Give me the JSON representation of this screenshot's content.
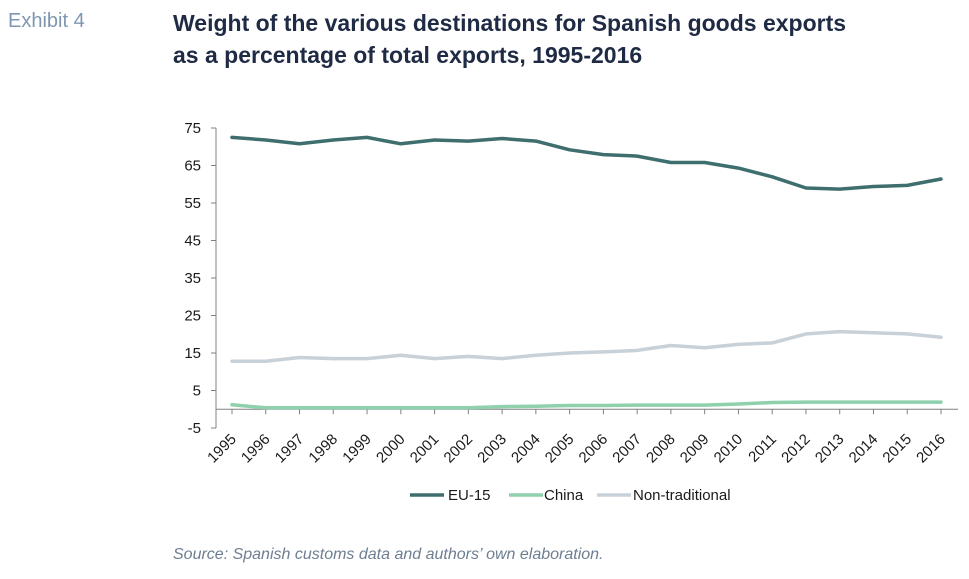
{
  "header": {
    "exhibit": "Exhibit 4",
    "title_line1": "Weight of the various destinations for Spanish goods exports",
    "title_line2": "as a percentage of total exports, 1995-2016"
  },
  "source": "Source: Spanish customs data and authors’ own elaboration.",
  "chart_data": {
    "type": "line",
    "title": "",
    "xlabel": "",
    "ylabel": "",
    "ylim": [
      -5,
      75
    ],
    "yticks": [
      75,
      65,
      55,
      45,
      35,
      25,
      15,
      5,
      -5
    ],
    "grid": false,
    "legend_position": "bottom",
    "x": [
      "1995",
      "1996",
      "1997",
      "1998",
      "1999",
      "2000",
      "2001",
      "2002",
      "2003",
      "2004",
      "2005",
      "2006",
      "2007",
      "2008",
      "2009",
      "2010",
      "2011",
      "2012",
      "2013",
      "2014",
      "2015",
      "2016"
    ],
    "series": [
      {
        "name": "EU-15",
        "color": "#3e6e6e",
        "values": [
          72.5,
          71.8,
          70.8,
          71.8,
          72.5,
          70.8,
          71.8,
          71.5,
          72.2,
          71.5,
          69.2,
          67.9,
          67.5,
          65.8,
          65.8,
          64.3,
          62.0,
          59.0,
          58.7,
          59.4,
          59.7,
          61.4
        ]
      },
      {
        "name": "China",
        "color": "#8fd0ad",
        "values": [
          1.2,
          0.4,
          0.4,
          0.4,
          0.4,
          0.4,
          0.4,
          0.4,
          0.7,
          0.8,
          1.0,
          1.0,
          1.1,
          1.1,
          1.1,
          1.4,
          1.8,
          1.9,
          1.9,
          1.9,
          1.9,
          1.9
        ]
      },
      {
        "name": "Non-traditional",
        "color": "#c8d0d8",
        "values": [
          12.8,
          12.8,
          13.8,
          13.5,
          13.5,
          14.4,
          13.5,
          14.1,
          13.5,
          14.4,
          15.0,
          15.3,
          15.7,
          17.0,
          16.4,
          17.3,
          17.7,
          20.1,
          20.7,
          20.4,
          20.1,
          19.2
        ]
      }
    ]
  }
}
